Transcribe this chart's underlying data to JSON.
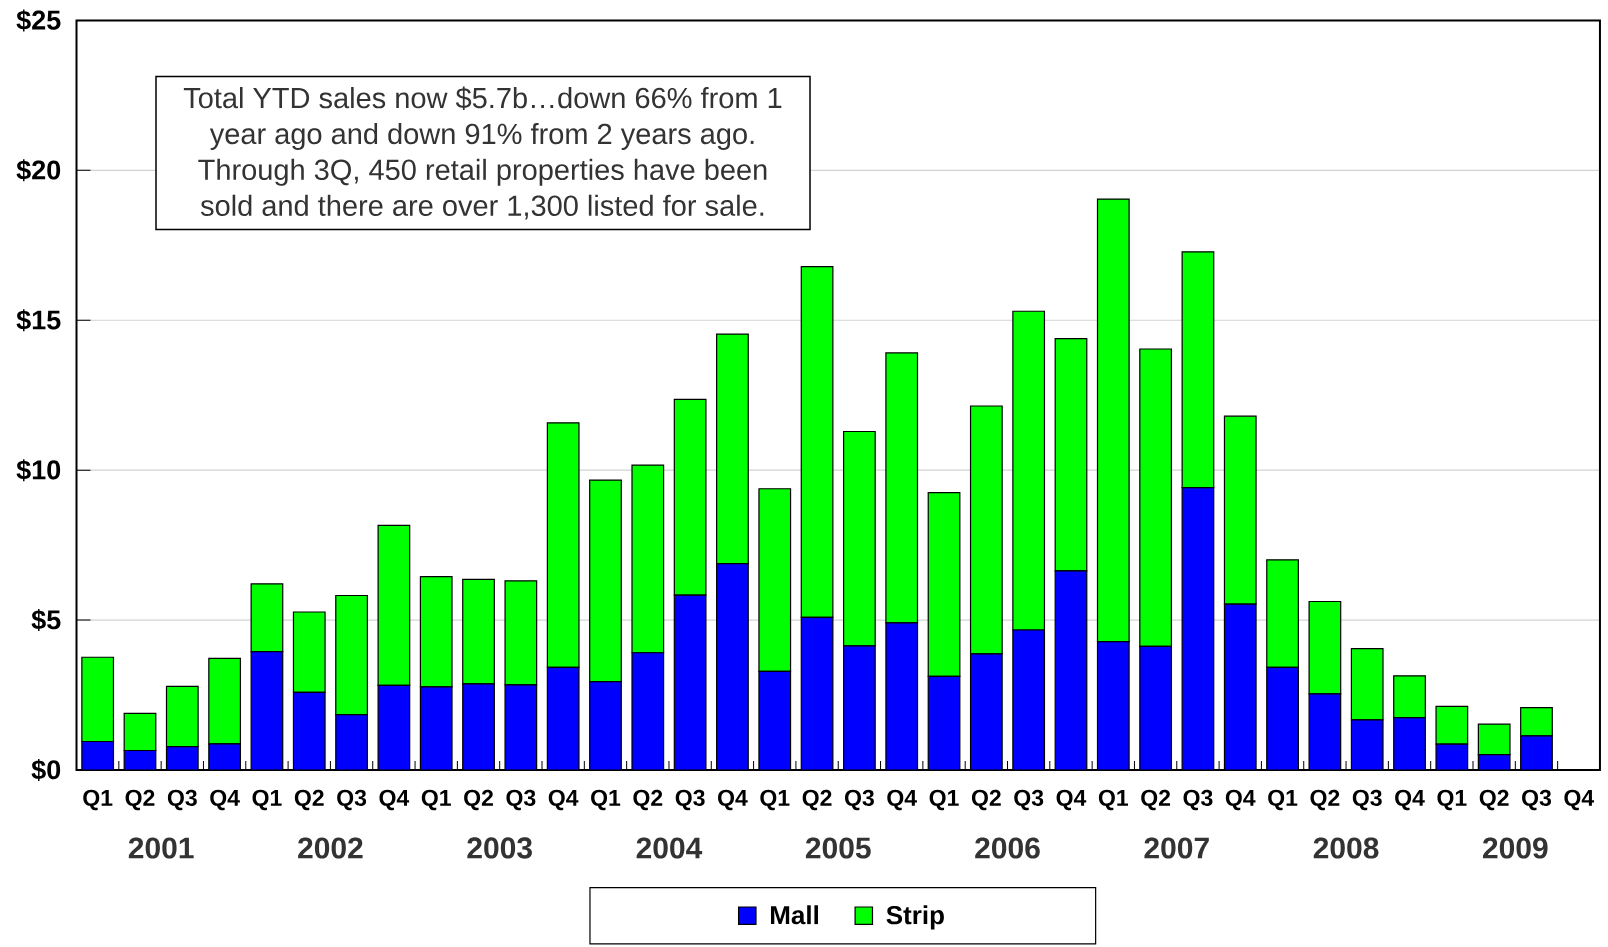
{
  "chart_data": {
    "type": "bar",
    "stacked": true,
    "categories": [
      "Q1",
      "Q2",
      "Q3",
      "Q4",
      "Q1",
      "Q2",
      "Q3",
      "Q4",
      "Q1",
      "Q2",
      "Q3",
      "Q4",
      "Q1",
      "Q2",
      "Q3",
      "Q4",
      "Q1",
      "Q2",
      "Q3",
      "Q4",
      "Q1",
      "Q2",
      "Q3",
      "Q4",
      "Q1",
      "Q2",
      "Q3",
      "Q4",
      "Q1",
      "Q2",
      "Q3",
      "Q4",
      "Q1",
      "Q2",
      "Q3",
      "Q4"
    ],
    "series": [
      {
        "name": "Mall",
        "color": "#0000ff",
        "values": [
          0.95,
          0.65,
          0.78,
          0.87,
          3.95,
          2.59,
          1.85,
          2.82,
          2.77,
          2.87,
          2.84,
          3.42,
          2.95,
          3.91,
          5.83,
          6.88,
          3.29,
          5.09,
          4.14,
          4.91,
          3.12,
          3.87,
          4.67,
          6.64,
          4.28,
          4.12,
          9.42,
          5.53,
          3.42,
          2.54,
          1.67,
          1.75,
          0.86,
          0.51,
          1.14,
          0
        ]
      },
      {
        "name": "Strip",
        "color": "#00ff00",
        "values": [
          2.81,
          1.24,
          2.01,
          2.85,
          2.26,
          2.68,
          3.97,
          5.34,
          3.68,
          3.49,
          3.47,
          8.16,
          6.72,
          6.26,
          6.53,
          7.66,
          6.09,
          11.7,
          7.15,
          9.0,
          6.13,
          8.27,
          10.63,
          7.75,
          14.76,
          9.92,
          7.86,
          6.27,
          3.59,
          3.08,
          2.38,
          1.39,
          1.26,
          1.02,
          0.94,
          0
        ]
      }
    ],
    "ylim": [
      0,
      25
    ],
    "yticks": [
      {
        "value": 0,
        "label": "$0"
      },
      {
        "value": 5,
        "label": "$5"
      },
      {
        "value": 10,
        "label": "$10"
      },
      {
        "value": 15,
        "label": "$15"
      },
      {
        "value": 20,
        "label": "$20"
      },
      {
        "value": 25,
        "label": "$25"
      }
    ],
    "grid": "y",
    "legend": "bottom",
    "annotations": [
      "Total YTD sales now $5.7b…down 66% from 1 year ago and down 91% from 2 years ago. Through 3Q, 450 retail properties have been sold and there are over 1,300 listed for sale.",
      "2001",
      "2002",
      "2003",
      "2004",
      "2005",
      "2006",
      "2007",
      "2008",
      "2009"
    ]
  }
}
